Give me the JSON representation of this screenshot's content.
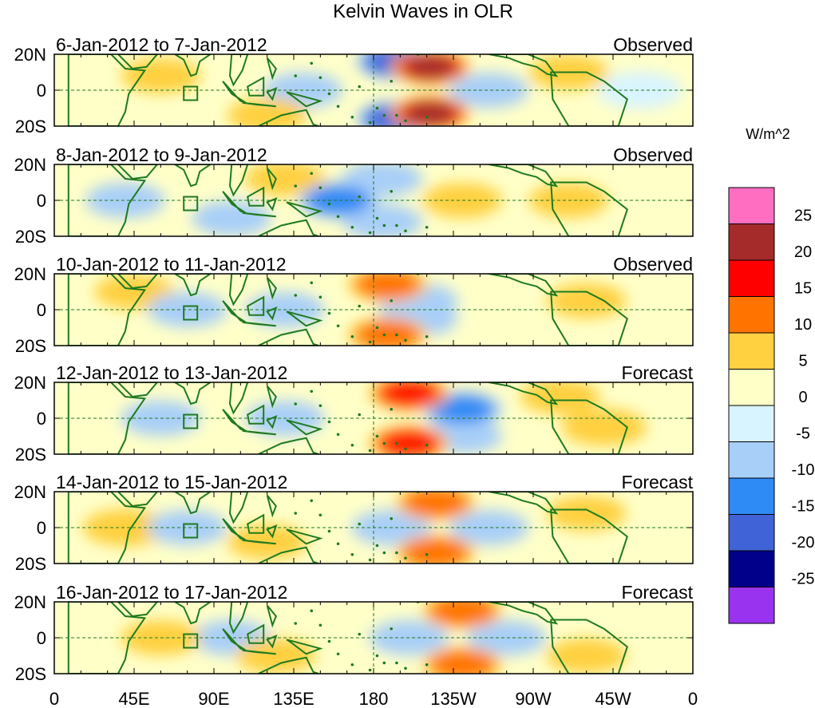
{
  "chart_data": {
    "type": "heatmap",
    "title": "Kelvin Waves in OLR",
    "units": "W/m^2",
    "x_ticks": [
      "0",
      "45E",
      "90E",
      "135E",
      "180",
      "135W",
      "90W",
      "45W",
      "0"
    ],
    "y_ticks": [
      "20N",
      "0",
      "20S"
    ],
    "xlim_deg_east": [
      0,
      360
    ],
    "ylim_deg": [
      -20,
      20
    ],
    "reference_lines": [
      "equator",
      "180 meridian"
    ],
    "colorbar": {
      "levels": [
        "25",
        "20",
        "15",
        "10",
        "5",
        "0",
        "-5",
        "-10",
        "-15",
        "-20",
        "-25"
      ],
      "colors": [
        "#FF6EC0",
        "#A52A2A",
        "#FF0000",
        "#FF7300",
        "#FFD040",
        "#FFFFC8",
        "#D8F4FF",
        "#A8CFF8",
        "#2E8AF5",
        "#4163D8",
        "#00008B",
        "#9A33F0"
      ]
    },
    "panels": [
      {
        "period": "6-Jan-2012 to 7-Jan-2012",
        "status": "Observed",
        "features": [
          {
            "lon": 212,
            "lat": 13,
            "value": 22
          },
          {
            "lon": 212,
            "lat": -13,
            "value": 22
          },
          {
            "lon": 193,
            "lat": 16,
            "value": -18
          },
          {
            "lon": 193,
            "lat": -16,
            "value": -18
          },
          {
            "lon": 245,
            "lat": 0,
            "value": -7
          },
          {
            "lon": 140,
            "lat": 0,
            "value": -6
          },
          {
            "lon": 60,
            "lat": 8,
            "value": 6
          },
          {
            "lon": 120,
            "lat": -14,
            "value": 6
          },
          {
            "lon": 290,
            "lat": 10,
            "value": 6
          },
          {
            "lon": 330,
            "lat": 0,
            "value": -4
          }
        ]
      },
      {
        "period": "8-Jan-2012 to 9-Jan-2012",
        "status": "Observed",
        "features": [
          {
            "lon": 160,
            "lat": 0,
            "value": -12
          },
          {
            "lon": 185,
            "lat": 12,
            "value": -8
          },
          {
            "lon": 185,
            "lat": -12,
            "value": -8
          },
          {
            "lon": 230,
            "lat": 0,
            "value": 6
          },
          {
            "lon": 130,
            "lat": 12,
            "value": 6
          },
          {
            "lon": 40,
            "lat": 0,
            "value": -6
          },
          {
            "lon": 290,
            "lat": 0,
            "value": 5
          },
          {
            "lon": 100,
            "lat": -10,
            "value": -5
          }
        ]
      },
      {
        "period": "10-Jan-2012 to 11-Jan-2012",
        "status": "Observed",
        "features": [
          {
            "lon": 188,
            "lat": 14,
            "value": 12
          },
          {
            "lon": 188,
            "lat": -14,
            "value": 12
          },
          {
            "lon": 205,
            "lat": 5,
            "value": -8
          },
          {
            "lon": 205,
            "lat": -5,
            "value": -8
          },
          {
            "lon": 75,
            "lat": 0,
            "value": -8
          },
          {
            "lon": 130,
            "lat": 0,
            "value": -6
          },
          {
            "lon": 45,
            "lat": 10,
            "value": 5
          },
          {
            "lon": 300,
            "lat": 5,
            "value": 5
          }
        ]
      },
      {
        "period": "12-Jan-2012 to 13-Jan-2012",
        "status": "Forecast",
        "features": [
          {
            "lon": 200,
            "lat": 14,
            "value": 17
          },
          {
            "lon": 200,
            "lat": -14,
            "value": 17
          },
          {
            "lon": 230,
            "lat": 5,
            "value": -10
          },
          {
            "lon": 230,
            "lat": -10,
            "value": -9
          },
          {
            "lon": 130,
            "lat": 0,
            "value": -6
          },
          {
            "lon": 60,
            "lat": 0,
            "value": -5
          },
          {
            "lon": 285,
            "lat": 12,
            "value": 5
          },
          {
            "lon": 310,
            "lat": -5,
            "value": 4
          }
        ]
      },
      {
        "period": "14-Jan-2012 to 15-Jan-2012",
        "status": "Forecast",
        "features": [
          {
            "lon": 215,
            "lat": 14,
            "value": 13
          },
          {
            "lon": 215,
            "lat": -14,
            "value": 13
          },
          {
            "lon": 245,
            "lat": 0,
            "value": -8
          },
          {
            "lon": 190,
            "lat": 0,
            "value": -6
          },
          {
            "lon": 75,
            "lat": 0,
            "value": -6
          },
          {
            "lon": 120,
            "lat": -8,
            "value": 5
          },
          {
            "lon": 40,
            "lat": 0,
            "value": 4
          },
          {
            "lon": 300,
            "lat": 8,
            "value": 5
          }
        ]
      },
      {
        "period": "16-Jan-2012 to 17-Jan-2012",
        "status": "Forecast",
        "features": [
          {
            "lon": 230,
            "lat": 15,
            "value": 14
          },
          {
            "lon": 230,
            "lat": -15,
            "value": 12
          },
          {
            "lon": 255,
            "lat": 0,
            "value": -7
          },
          {
            "lon": 200,
            "lat": 0,
            "value": -5
          },
          {
            "lon": 100,
            "lat": 0,
            "value": -5
          },
          {
            "lon": 60,
            "lat": 0,
            "value": 5
          },
          {
            "lon": 125,
            "lat": -10,
            "value": 5
          },
          {
            "lon": 300,
            "lat": -10,
            "value": 5
          }
        ]
      }
    ]
  }
}
